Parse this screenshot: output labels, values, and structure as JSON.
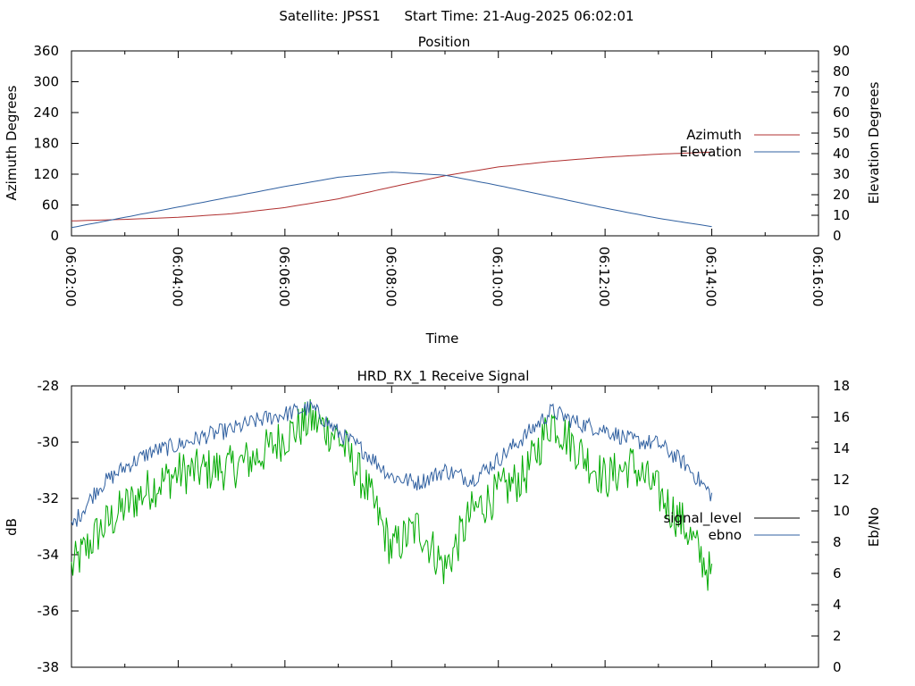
{
  "header": {
    "satellite_label": "Satellite: JPSS1",
    "start_time_label": "Start Time: 21-Aug-2025 06:02:01"
  },
  "chart_data": [
    {
      "type": "line",
      "title": "Position",
      "xlabel": "Time",
      "ylabel_left": "Azimuth Degrees",
      "ylabel_right": "Elevation Degrees",
      "x_ticks": [
        "06:02:00",
        "06:04:00",
        "06:06:00",
        "06:08:00",
        "06:10:00",
        "06:12:00",
        "06:14:00",
        "06:16:00"
      ],
      "x_range": [
        "06:02:00",
        "06:16:00"
      ],
      "y_left_range": [
        0,
        360
      ],
      "y_left_ticks": [
        0,
        60,
        120,
        180,
        240,
        300,
        360
      ],
      "y_right_range": [
        0,
        90
      ],
      "y_right_ticks": [
        0,
        10,
        20,
        30,
        40,
        50,
        60,
        70,
        80,
        90
      ],
      "legend_position": "right",
      "grid": false,
      "series": [
        {
          "name": "Azimuth",
          "axis": "left",
          "color": "#b03030",
          "points": [
            [
              "06:02:00",
              29
            ],
            [
              "06:03:00",
              32
            ],
            [
              "06:04:00",
              36
            ],
            [
              "06:05:00",
              43
            ],
            [
              "06:06:00",
              55
            ],
            [
              "06:07:00",
              72
            ],
            [
              "06:08:00",
              95
            ],
            [
              "06:09:00",
              117
            ],
            [
              "06:10:00",
              134
            ],
            [
              "06:11:00",
              145
            ],
            [
              "06:12:00",
              153
            ],
            [
              "06:13:00",
              159
            ],
            [
              "06:14:00",
              163
            ]
          ]
        },
        {
          "name": "Elevation",
          "axis": "right",
          "color": "#3060a0",
          "points": [
            [
              "06:02:00",
              4
            ],
            [
              "06:03:00",
              9
            ],
            [
              "06:04:00",
              14
            ],
            [
              "06:05:00",
              19
            ],
            [
              "06:06:00",
              24
            ],
            [
              "06:07:00",
              28.5
            ],
            [
              "06:08:00",
              31
            ],
            [
              "06:09:00",
              29.5
            ],
            [
              "06:10:00",
              24.5
            ],
            [
              "06:11:00",
              19
            ],
            [
              "06:12:00",
              13.5
            ],
            [
              "06:13:00",
              8.5
            ],
            [
              "06:14:00",
              4.5
            ]
          ]
        }
      ]
    },
    {
      "type": "line",
      "title": "HRD_RX_1 Receive Signal",
      "ylabel_left": "dB",
      "ylabel_right": "Eb/No",
      "x_range": [
        "06:02:00",
        "06:16:00"
      ],
      "y_left_range": [
        -38,
        -28
      ],
      "y_left_ticks": [
        -38,
        -36,
        -34,
        -32,
        -30,
        -28
      ],
      "y_right_range": [
        0,
        18
      ],
      "y_right_ticks": [
        0,
        2,
        4,
        6,
        8,
        10,
        12,
        14,
        16,
        18
      ],
      "legend_position": "right",
      "grid": false,
      "series": [
        {
          "name": "signal_level",
          "axis": "left",
          "color": "#00aa00",
          "points": [
            [
              "06:02:00",
              -34.5
            ],
            [
              "06:02:30",
              -33.2
            ],
            [
              "06:03:00",
              -32.3
            ],
            [
              "06:03:30",
              -31.6
            ],
            [
              "06:04:00",
              -31.1
            ],
            [
              "06:04:30",
              -31.0
            ],
            [
              "06:05:00",
              -30.9
            ],
            [
              "06:05:30",
              -30.5
            ],
            [
              "06:06:00",
              -29.8
            ],
            [
              "06:06:30",
              -29.2
            ],
            [
              "06:07:00",
              -29.8
            ],
            [
              "06:07:30",
              -31.5
            ],
            [
              "06:08:00",
              -33.8
            ],
            [
              "06:08:30",
              -33.0
            ],
            [
              "06:09:00",
              -34.5
            ],
            [
              "06:09:30",
              -32.5
            ],
            [
              "06:10:00",
              -31.8
            ],
            [
              "06:10:30",
              -31.2
            ],
            [
              "06:11:00",
              -29.2
            ],
            [
              "06:11:30",
              -30.3
            ],
            [
              "06:12:00",
              -31.3
            ],
            [
              "06:12:30",
              -30.8
            ],
            [
              "06:13:00",
              -31.8
            ],
            [
              "06:13:30",
              -33.0
            ],
            [
              "06:14:00",
              -34.8
            ]
          ]
        },
        {
          "name": "ebno",
          "axis": "right",
          "color": "#3060a0",
          "points": [
            [
              "06:02:00",
              9.0
            ],
            [
              "06:02:30",
              11.5
            ],
            [
              "06:03:00",
              12.8
            ],
            [
              "06:03:30",
              13.8
            ],
            [
              "06:04:00",
              14.2
            ],
            [
              "06:04:30",
              14.8
            ],
            [
              "06:05:00",
              15.2
            ],
            [
              "06:05:30",
              15.8
            ],
            [
              "06:06:00",
              16.2
            ],
            [
              "06:06:30",
              16.6
            ],
            [
              "06:07:00",
              15.0
            ],
            [
              "06:07:30",
              13.8
            ],
            [
              "06:08:00",
              12.2
            ],
            [
              "06:08:30",
              11.8
            ],
            [
              "06:09:00",
              12.6
            ],
            [
              "06:09:30",
              12.0
            ],
            [
              "06:10:00",
              13.3
            ],
            [
              "06:10:30",
              14.8
            ],
            [
              "06:11:00",
              16.4
            ],
            [
              "06:11:30",
              15.6
            ],
            [
              "06:12:00",
              15.2
            ],
            [
              "06:12:30",
              14.5
            ],
            [
              "06:13:00",
              14.3
            ],
            [
              "06:13:30",
              13.0
            ],
            [
              "06:14:00",
              11.0
            ]
          ]
        }
      ]
    }
  ]
}
